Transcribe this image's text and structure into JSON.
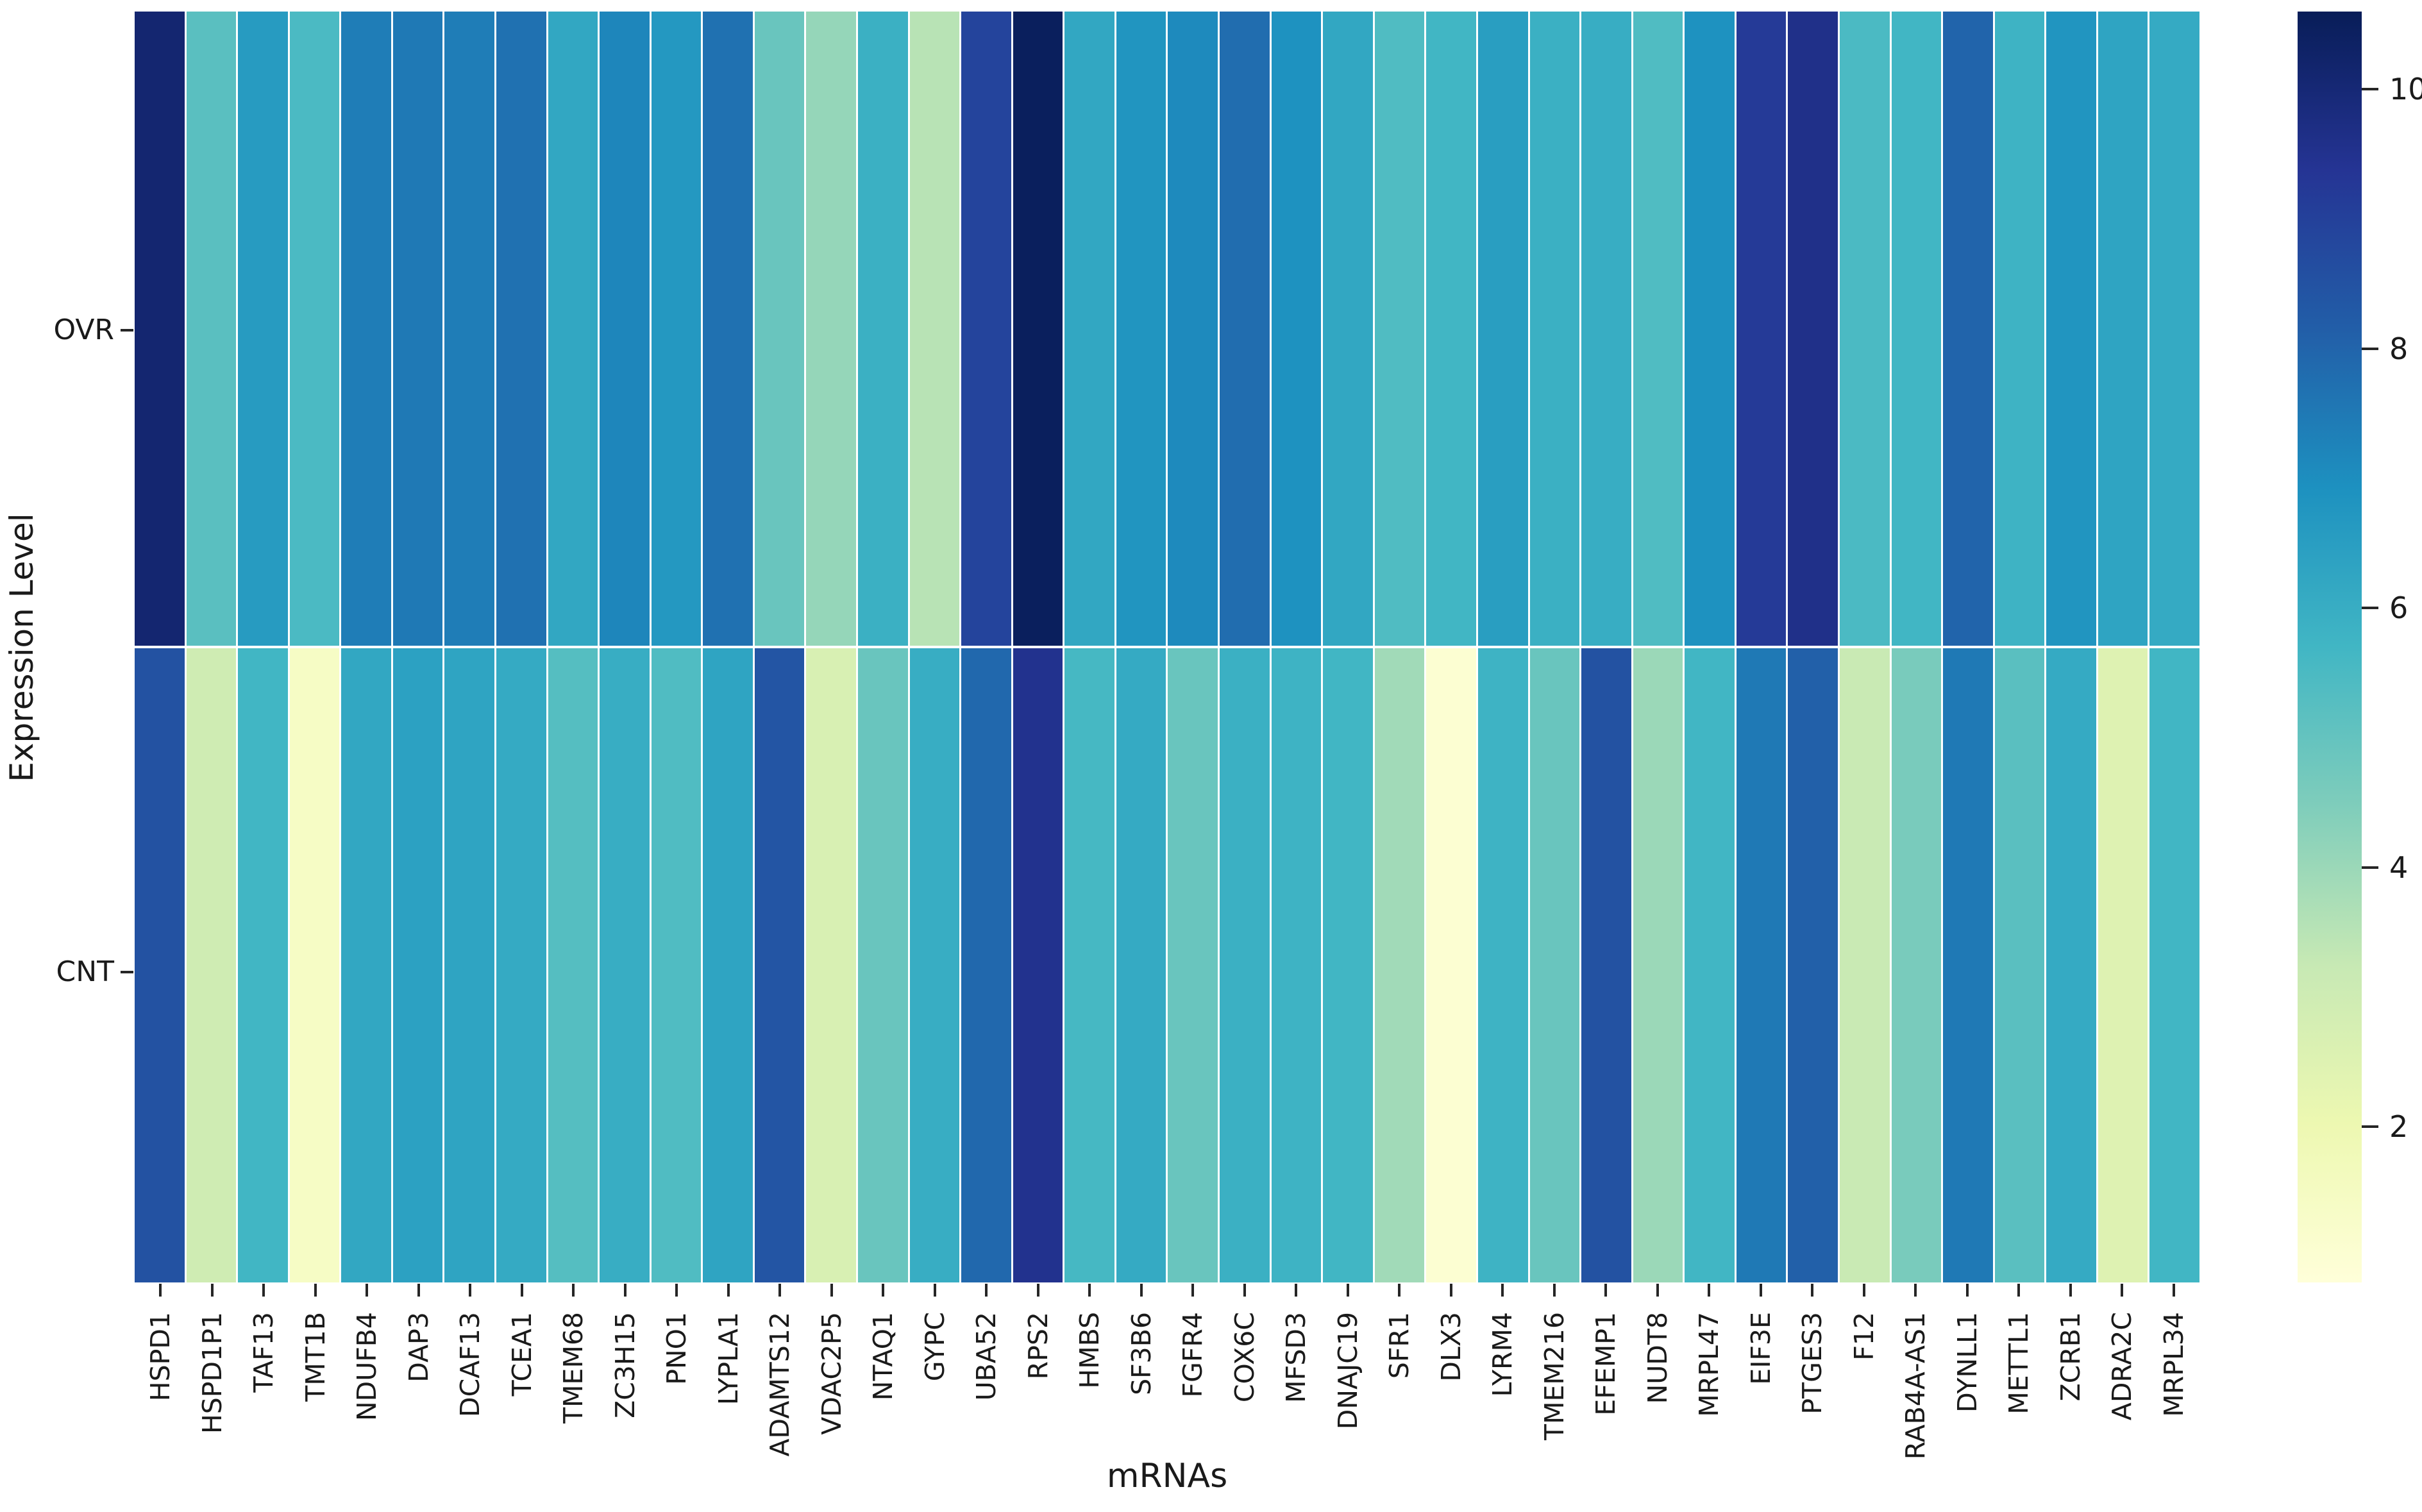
{
  "figure": {
    "background": "#ffffff",
    "text_color": "#1a1a1a"
  },
  "chart_data": {
    "type": "heatmap",
    "title": "",
    "xlabel": "mRNAs",
    "ylabel": "Expression Level",
    "rows": [
      "OVR",
      "CNT"
    ],
    "columns": [
      "HSPD1",
      "HSPD1P1",
      "TAF13",
      "TMT1B",
      "NDUFB4",
      "DAP3",
      "DCAF13",
      "TCEA1",
      "TMEM68",
      "ZC3H15",
      "PNO1",
      "LYPLA1",
      "ADAMTS12",
      "VDAC2P5",
      "NTAQ1",
      "GYPC",
      "UBA52",
      "RPS2",
      "HMBS",
      "SF3B6",
      "FGFR4",
      "COX6C",
      "MFSD3",
      "DNAJC19",
      "SFR1",
      "DLX3",
      "LYRM4",
      "TMEM216",
      "EFEMP1",
      "NUDT8",
      "MRPL47",
      "EIF3E",
      "PTGES3",
      "F12",
      "RAB4A-AS1",
      "DYNLL1",
      "METTL1",
      "ZCRB1",
      "ADRA2C",
      "MRPL34"
    ],
    "series": [
      {
        "name": "OVR",
        "values": [
          10.1,
          5.2,
          6.6,
          5.5,
          7.4,
          7.5,
          7.4,
          7.7,
          6.2,
          7.2,
          6.7,
          7.7,
          4.9,
          4.1,
          5.9,
          3.5,
          8.9,
          10.5,
          6.2,
          6.8,
          7.1,
          7.8,
          6.9,
          6.2,
          5.4,
          5.7,
          6.5,
          5.9,
          6.0,
          5.4,
          6.9,
          9.2,
          9.6,
          5.5,
          5.7,
          8.0,
          5.8,
          6.8,
          6.3,
          6.1
        ]
      },
      {
        "name": "CNT",
        "values": [
          8.5,
          3.0,
          5.7,
          1.4,
          6.2,
          6.4,
          6.3,
          6.1,
          5.3,
          6.0,
          5.4,
          6.3,
          8.4,
          2.7,
          4.9,
          6.0,
          7.9,
          9.5,
          5.6,
          6.1,
          4.9,
          5.9,
          5.8,
          5.7,
          3.9,
          1.0,
          5.8,
          4.9,
          8.5,
          4.0,
          5.7,
          7.5,
          8.1,
          3.2,
          4.6,
          7.5,
          5.2,
          6.1,
          2.5,
          5.7
        ]
      }
    ],
    "colormap": {
      "name": "YlGnBu",
      "anchors": [
        "#ffffd9",
        "#edf8b1",
        "#c7e9b4",
        "#7fcdbb",
        "#41b6c4",
        "#1d91c0",
        "#225ea8",
        "#253494",
        "#081d58"
      ]
    },
    "colorbar": {
      "vmin": 0.8,
      "vmax": 10.6,
      "ticks": [
        2,
        4,
        6,
        8,
        10
      ],
      "tick_labels": [
        "2",
        "4",
        "6",
        "8",
        "10"
      ]
    },
    "layout_hints": {
      "grid": "off",
      "cell_gridlines": "white",
      "x_tick_rotation": 90,
      "legend_position": "right-colorbar"
    }
  }
}
